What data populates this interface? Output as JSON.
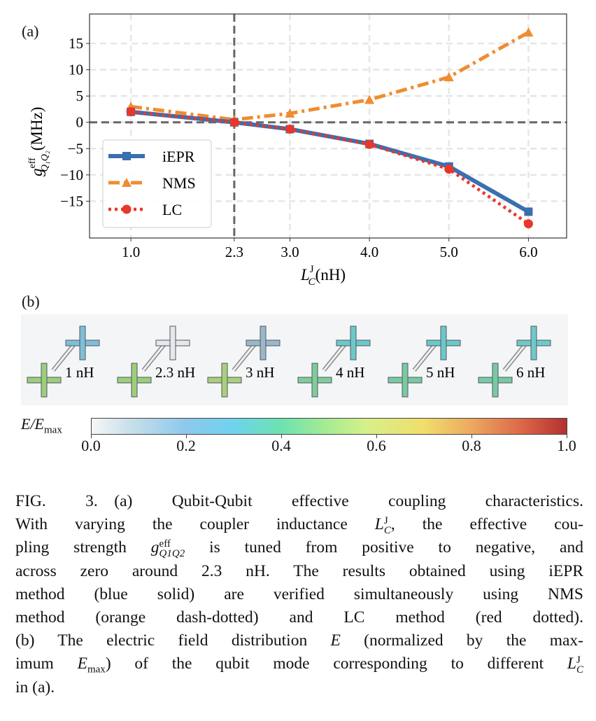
{
  "panel_a_label": "(a)",
  "panel_b_label": "(b)",
  "chart_data": {
    "type": "line",
    "x": [
      1.0,
      2.3,
      3.0,
      4.0,
      5.0,
      6.0
    ],
    "series": [
      {
        "name": "iEPR",
        "values": [
          2.0,
          0.0,
          -1.3,
          -4.1,
          -8.4,
          -17.0
        ],
        "color": "#3a6fb0",
        "style": "solid",
        "marker": "square"
      },
      {
        "name": "NMS",
        "values": [
          3.0,
          0.5,
          1.7,
          4.3,
          8.6,
          17.1
        ],
        "color": "#f08c30",
        "style": "dash-dot",
        "marker": "triangle"
      },
      {
        "name": "LC",
        "values": [
          2.0,
          0.0,
          -1.3,
          -4.2,
          -8.9,
          -19.3
        ],
        "color": "#e8372a",
        "style": "dotted",
        "marker": "circle"
      }
    ],
    "xticks": [
      "1.0",
      "2.3",
      "3.0",
      "4.0",
      "5.0",
      "6.0"
    ],
    "yticks": [
      "15",
      "10",
      "5",
      "0",
      "−5",
      "−10",
      "−15"
    ],
    "ytick_values": [
      15,
      10,
      5,
      0,
      -5,
      -10,
      -15
    ],
    "xlim": [
      0.48,
      6.48
    ],
    "ylim": [
      -22,
      20.6
    ],
    "xlabel": {
      "main": "L",
      "sub": "C",
      "sup": "J",
      "unit": "(nH)"
    },
    "ylabel": {
      "main": "g",
      "sub": "Q₁Q₂",
      "sup": "eff",
      "unit": "(MHz)"
    },
    "reference_lines": {
      "x": 2.3,
      "y": 0
    },
    "grid": true,
    "legend_position": "lower-left"
  },
  "field_map": {
    "labels": [
      "1 nH",
      "2.3 nH",
      "3 nH",
      "4 nH",
      "5 nH",
      "6 nH"
    ],
    "upper_cross_colors": [
      "#7fbfd6",
      "#e6e8ea",
      "#9ab8c8",
      "#6cc9c8",
      "#6cc8c8",
      "#6fcac6"
    ],
    "lower_cross_colors": [
      "#9ccf7a",
      "#9ccf7a",
      "#a8d07a",
      "#7fcd98",
      "#78cba0",
      "#78cba0"
    ]
  },
  "colorbar": {
    "label_main": "E/E",
    "label_sub": "max",
    "ticks": [
      "0.0",
      "0.2",
      "0.4",
      "0.6",
      "0.8",
      "1.0"
    ]
  },
  "caption": [
    [
      {
        "t": "FIG. 3. (a) Qubit-Qubit effective coupling characteristics."
      }
    ],
    [
      {
        "t": "With varying the coupler inductance "
      },
      {
        "t": "L",
        "i": true,
        "sub": "C",
        "sup": "J"
      },
      {
        "t": ", the effective cou-"
      }
    ],
    [
      {
        "t": "pling strength "
      },
      {
        "t": "g",
        "i": true,
        "sub": "Q1Q2",
        "sup": "eff"
      },
      {
        "t": " is tuned from positive to negative, and"
      }
    ],
    [
      {
        "t": "across zero around 2.3 nH.  The results obtained using iEPR"
      }
    ],
    [
      {
        "t": "method (blue solid) are verified simultaneously using NMS"
      }
    ],
    [
      {
        "t": "method (orange dash-dotted) and LC method (red dotted)."
      }
    ],
    [
      {
        "t": "(b) The electric field distribution "
      },
      {
        "t": "E",
        "i": true
      },
      {
        "t": " (normalized by the max-"
      }
    ],
    [
      {
        "t": "imum "
      },
      {
        "t": "E",
        "i": true,
        "sub": "max"
      },
      {
        "t": ") of the qubit mode corresponding to different "
      },
      {
        "t": "L",
        "i": true,
        "sub": "C",
        "sup": "J"
      }
    ],
    [
      {
        "t": "in (a)."
      }
    ]
  ]
}
